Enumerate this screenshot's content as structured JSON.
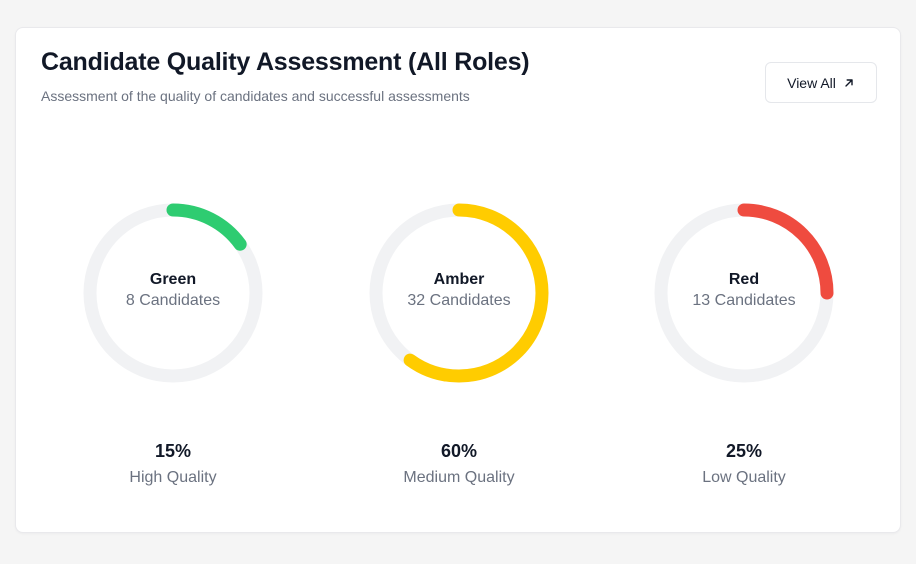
{
  "header": {
    "title": "Candidate Quality Assessment (All Roles)",
    "subtitle": "Assessment of the quality of candidates and successful assessments",
    "view_all_label": "View All",
    "view_all_icon": "arrow-up-right-icon"
  },
  "colors": {
    "track": "#f1f2f4",
    "green": "#22c55e",
    "amber": "#facc15",
    "red": "#ef4444"
  },
  "metrics": [
    {
      "name": "Green",
      "count_label": "8 Candidates",
      "percent_label": "15%",
      "fraction": 0.15,
      "quality_label": "High Quality",
      "color": "#2ecc71"
    },
    {
      "name": "Amber",
      "count_label": "32 Candidates",
      "percent_label": "60%",
      "fraction": 0.6,
      "quality_label": "Medium Quality",
      "color": "#ffcc00"
    },
    {
      "name": "Red",
      "count_label": "13 Candidates",
      "percent_label": "25%",
      "fraction": 0.25,
      "quality_label": "Low Quality",
      "color": "#ef4b3f"
    }
  ]
}
